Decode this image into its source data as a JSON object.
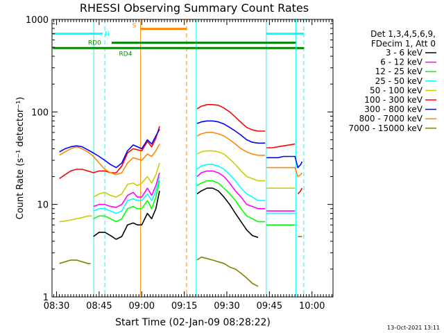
{
  "chart_data": {
    "type": "line",
    "title": "RHESSI Observing Summary Count Rates",
    "xlabel": "Start Time (02-Jan-09 08:28:22)",
    "ylabel": "Count Rate (s⁻¹ detector⁻¹)",
    "yscale": "log",
    "ylim": [
      1,
      1000
    ],
    "xlim_minutes": [
      -1.6,
      97.4
    ],
    "x_ticks": [
      {
        "label": "08:30",
        "min": 0
      },
      {
        "label": "08:45",
        "min": 15
      },
      {
        "label": "09:00",
        "min": 30
      },
      {
        "label": "09:15",
        "min": 45
      },
      {
        "label": "09:30",
        "min": 60
      },
      {
        "label": "09:45",
        "min": 75
      },
      {
        "label": "10:00",
        "min": 90
      }
    ],
    "y_ticks": [
      {
        "label": "1",
        "v": 1
      },
      {
        "label": "10",
        "v": 10
      },
      {
        "label": "100",
        "v": 100
      },
      {
        "label": "1000",
        "v": 1000
      }
    ],
    "legend": {
      "header": [
        "Det 1,3,4,5,6,9,",
        "FDecim 1, Att 0"
      ],
      "placement": "right"
    },
    "series": [
      {
        "name": "3 - 6 keV",
        "color": "#000000",
        "segments": [
          {
            "x": [
              13,
              15,
              17,
              19,
              21,
              23,
              25,
              27,
              28.5,
              30,
              32,
              33.5,
              35,
              36.3
            ],
            "y": [
              4.5,
              5,
              5,
              4.6,
              4.2,
              4.5,
              6,
              6.3,
              6,
              6,
              8,
              7,
              9,
              14
            ]
          },
          {
            "x": [
              49.5,
              51,
              53,
              55,
              57,
              59,
              61,
              63,
              65,
              67,
              69,
              71
            ],
            "y": [
              13,
              14,
              15,
              15,
              14,
              12,
              10,
              8,
              6.5,
              5.3,
              4.6,
              4.4
            ]
          }
        ]
      },
      {
        "name": "6 - 12 keV",
        "color": "#ff00ff",
        "segments": [
          {
            "x": [
              13,
              15,
              17,
              19,
              21,
              23,
              25,
              27,
              28.5,
              30,
              32,
              33.5,
              35,
              36.3
            ],
            "y": [
              9.5,
              10,
              10,
              9.5,
              9.3,
              10,
              12.5,
              13.5,
              12,
              12,
              15,
              12.5,
              16,
              22
            ]
          },
          {
            "x": [
              49.5,
              51,
              53,
              55,
              57,
              59,
              61,
              63,
              65,
              67,
              69,
              71,
              72.5,
              73.5
            ],
            "y": [
              20,
              22,
              23,
              23,
              22,
              20,
              17,
              14,
              12,
              10,
              9.5,
              9,
              9,
              9
            ]
          },
          {
            "x": [
              74,
              76,
              78,
              80,
              82,
              84
            ],
            "y": [
              8.5,
              8.5,
              8.5,
              8.5,
              8.5,
              8.5
            ]
          }
        ]
      },
      {
        "name": "12 - 25 keV",
        "color": "#00ff00",
        "segments": [
          {
            "x": [
              13,
              15,
              17,
              19,
              21,
              23,
              25,
              27,
              28.5,
              30,
              32,
              33.5,
              35,
              36.3
            ],
            "y": [
              7,
              7.5,
              7.5,
              7,
              6.5,
              7,
              9,
              9.5,
              9,
              9,
              11,
              9,
              12,
              18
            ]
          },
          {
            "x": [
              49.5,
              51,
              53,
              55,
              57,
              59,
              61,
              63,
              65,
              67,
              69,
              71,
              72.5,
              73.5
            ],
            "y": [
              16,
              17,
              18,
              18,
              17,
              15,
              13,
              11,
              9,
              7.5,
              7,
              6.5,
              6.5,
              6.5
            ]
          },
          {
            "x": [
              74,
              76,
              78,
              80,
              82,
              84
            ],
            "y": [
              6,
              6,
              6,
              6,
              6,
              6
            ]
          }
        ]
      },
      {
        "name": "25 - 50 keV",
        "color": "#00ffff",
        "segments": [
          {
            "x": [
              13,
              15,
              17,
              19,
              21,
              23,
              25,
              27,
              28.5,
              30,
              32,
              33.5,
              35,
              36.3
            ],
            "y": [
              8.5,
              9,
              9,
              8.5,
              8,
              8.5,
              11,
              11.5,
              11,
              11,
              13,
              11,
              14,
              20
            ]
          },
          {
            "x": [
              49.5,
              51,
              53,
              55,
              57,
              59,
              61,
              63,
              65,
              67,
              69,
              71,
              72.5,
              73.5
            ],
            "y": [
              24,
              26,
              27,
              27,
              26,
              24,
              21,
              18,
              15,
              13,
              12,
              11,
              11,
              11
            ]
          },
          {
            "x": [
              74,
              76,
              78,
              80,
              82,
              84
            ],
            "y": [
              8,
              8,
              8,
              8,
              8,
              8
            ]
          }
        ]
      },
      {
        "name": "50 - 100 keV",
        "color": "#cccc00",
        "segments": [
          {
            "x": [
              1,
              3,
              5,
              7,
              9,
              11,
              12.5
            ],
            "y": [
              6.5,
              6.6,
              6.8,
              7,
              7.2,
              7.5,
              7.5
            ]
          },
          {
            "x": [
              13,
              15,
              17,
              19,
              21,
              23,
              25,
              27,
              28.5,
              30,
              32,
              33.5,
              35,
              36.3
            ],
            "y": [
              12,
              13,
              13.5,
              12.5,
              12,
              13,
              16.5,
              17,
              16,
              17,
              20,
              17,
              21,
              28
            ]
          },
          {
            "x": [
              49.5,
              51,
              53,
              55,
              57,
              59,
              61,
              63,
              65,
              67,
              69,
              71,
              72.5,
              73.5
            ],
            "y": [
              35,
              37,
              38,
              38,
              37,
              35,
              31,
              27,
              23,
              20,
              19,
              18,
              18,
              18
            ]
          },
          {
            "x": [
              74,
              76,
              78,
              80,
              82,
              84
            ],
            "y": [
              15,
              15,
              15,
              15,
              15,
              15
            ]
          }
        ]
      },
      {
        "name": "100 - 300 keV",
        "color": "#ff0000",
        "segments": [
          {
            "x": [
              1,
              3,
              5,
              7,
              9,
              11,
              13,
              15,
              17,
              19,
              21,
              23,
              25,
              27,
              28.5,
              30,
              32,
              33.5,
              35,
              36.3
            ],
            "y": [
              19,
              21,
              23,
              24,
              24,
              23,
              22,
              23,
              23,
              22,
              22,
              26,
              36,
              40,
              39,
              38,
              48,
              42,
              52,
              70
            ]
          },
          {
            "x": [
              49.5,
              51,
              53,
              55,
              57,
              59,
              61,
              63,
              65,
              67,
              69,
              71,
              72.5,
              73.5
            ],
            "y": [
              108,
              115,
              120,
              120,
              118,
              110,
              100,
              88,
              77,
              68,
              64,
              62,
              62,
              62
            ]
          },
          {
            "x": [
              74,
              76,
              78,
              80,
              82,
              84
            ],
            "y": [
              41,
              41,
              42,
              43,
              44,
              45
            ]
          },
          {
            "x": [
              85,
              86,
              86.5
            ],
            "y": [
              13,
              14,
              15
            ]
          }
        ]
      },
      {
        "name": "300 - 800 keV",
        "color": "#0000ff",
        "segments": [
          {
            "x": [
              1,
              3,
              5,
              7,
              9,
              11,
              13,
              15,
              17,
              19,
              21,
              23,
              25,
              27,
              28.5,
              30,
              32,
              33.5,
              35,
              36.3
            ],
            "y": [
              37,
              40,
              42,
              43,
              42,
              39,
              36,
              33,
              30,
              27,
              25,
              28,
              38,
              44,
              42,
              40,
              50,
              45,
              55,
              65
            ]
          },
          {
            "x": [
              49.5,
              51,
              53,
              55,
              57,
              59,
              61,
              63,
              65,
              67,
              69,
              71,
              72.5,
              73.5
            ],
            "y": [
              75,
              78,
              80,
              80,
              78,
              74,
              68,
              62,
              56,
              50,
              47,
              46,
              46,
              46
            ]
          },
          {
            "x": [
              74,
              76,
              78,
              80,
              82,
              84,
              85,
              86,
              86.5
            ],
            "y": [
              32,
              32,
              32,
              33,
              33,
              33,
              25,
              27,
              29
            ]
          }
        ]
      },
      {
        "name": "800 - 7000 keV",
        "color": "#ff8800",
        "segments": [
          {
            "x": [
              1,
              3,
              5,
              7,
              9,
              11,
              13,
              15,
              17,
              19,
              21,
              23,
              25,
              27,
              28.5,
              30,
              32,
              33.5,
              35,
              36.3
            ],
            "y": [
              34,
              37,
              40,
              42,
              40,
              37,
              33,
              28,
              24,
              22,
              21,
              22,
              28,
              32,
              31,
              30,
              35,
              33,
              38,
              45
            ]
          },
          {
            "x": [
              49.5,
              51,
              53,
              55,
              57,
              59,
              61,
              63,
              65,
              67,
              69,
              71,
              72.5,
              73.5
            ],
            "y": [
              55,
              58,
              60,
              60,
              58,
              55,
              50,
              45,
              40,
              37,
              35,
              34,
              34,
              34
            ]
          },
          {
            "x": [
              74,
              76,
              78,
              80,
              82,
              84,
              85,
              86,
              86.5
            ],
            "y": [
              25,
              25,
              25,
              25,
              25,
              25,
              20,
              21,
              22
            ]
          }
        ]
      },
      {
        "name": "7000 - 15000 keV",
        "color": "#808000",
        "segments": [
          {
            "x": [
              1,
              3,
              5,
              7,
              9,
              11,
              12
            ],
            "y": [
              2.3,
              2.4,
              2.5,
              2.5,
              2.4,
              2.3,
              2.3
            ]
          },
          {
            "x": [
              49.5,
              51,
              53,
              55,
              57,
              59,
              61,
              63,
              65,
              67,
              69,
              71
            ],
            "y": [
              2.5,
              2.7,
              2.6,
              2.5,
              2.4,
              2.3,
              2.1,
              2,
              1.8,
              1.6,
              1.4,
              1.3
            ]
          },
          {
            "x": [
              85,
              86,
              86.5
            ],
            "y": [
              4.5,
              4.5,
              4.5
            ]
          }
        ]
      }
    ],
    "vertical_markers": [
      {
        "x": 13.1,
        "color": "#00ffff",
        "style": "solid"
      },
      {
        "x": 17.0,
        "color": "#00ffff",
        "style": "dashed"
      },
      {
        "x": 29.6,
        "color": "#ff8800",
        "style": "solid"
      },
      {
        "x": 45.8,
        "color": "#ff8800",
        "style": "dashed"
      },
      {
        "x": 49.2,
        "color": "#00ffff",
        "style": "solid"
      },
      {
        "x": 73.9,
        "color": "#00ffff",
        "style": "solid"
      },
      {
        "x": 84.3,
        "color": "#00ffff",
        "style": "solid"
      },
      {
        "x": 87.1,
        "color": "#00ffff",
        "style": "dashed"
      }
    ],
    "flag_bars": [
      {
        "label": "N",
        "color": "#00ffff",
        "y": 700,
        "segments": [
          [
            -1.3,
            16.3
          ],
          [
            73.9,
            87.2
          ]
        ]
      },
      {
        "label": "S",
        "color": "#ff8800",
        "y": 790,
        "segments": [
          [
            29.6,
            45.8
          ]
        ]
      },
      {
        "label": "RD0",
        "color": "#008800",
        "y": 560,
        "segments": [
          [
            19.4,
            84.3
          ]
        ]
      },
      {
        "label": "RD4",
        "color": "#008800",
        "y": 490,
        "segments": [
          [
            -1.3,
            84.3
          ],
          [
            84.5,
            87.2
          ]
        ]
      }
    ]
  },
  "footer_timestamp": "13-Oct-2021 13:11"
}
